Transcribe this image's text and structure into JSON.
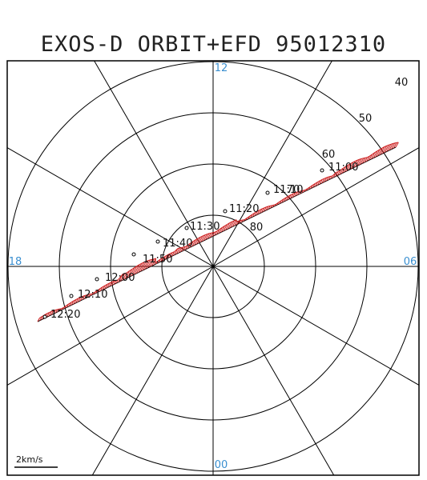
{
  "title": "EXOS-D ORBIT+EFD 95012310",
  "colors": {
    "axis": "#000000",
    "mlt": "#3a8fd0",
    "efd": "#cc1e1e",
    "orbit": "#000000"
  },
  "mlt_labels": {
    "top": "12",
    "left": "18",
    "right": "06",
    "bottom": "00"
  },
  "latitude_labels": [
    "40",
    "50",
    "60",
    "70",
    "80"
  ],
  "time_labels": [
    "11:00",
    "11:10",
    "11:20",
    "11:30",
    "11:40",
    "11:50",
    "12:00",
    "12:10",
    "12:20"
  ],
  "scale_label": "2km/s"
}
